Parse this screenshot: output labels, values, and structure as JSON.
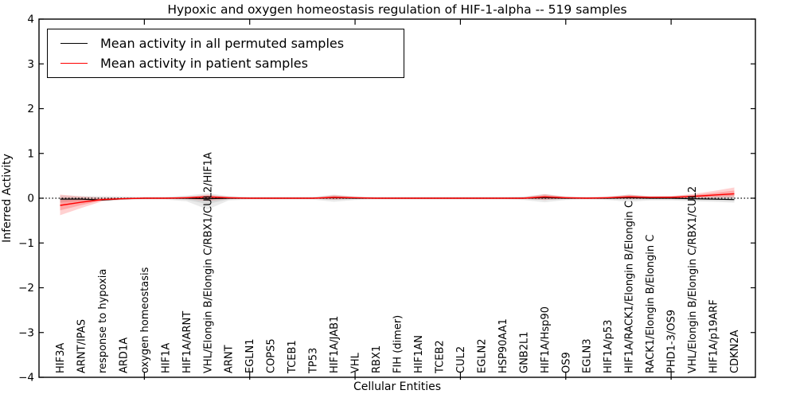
{
  "chart_data": {
    "type": "line",
    "title": "Hypoxic and oxygen homeostasis regulation of HIF-1-alpha -- 519 samples",
    "xlabel": "Cellular Entities",
    "ylabel": "Inferred Activity",
    "ylim": [
      -4,
      4
    ],
    "yticks": [
      4,
      3,
      2,
      1,
      0,
      -1,
      -2,
      -3,
      -4
    ],
    "ytick_labels": [
      "4",
      "3",
      "2",
      "1",
      "0",
      "−1",
      "−2",
      "−3",
      "−4"
    ],
    "xticks_major": [
      5,
      10,
      15,
      20,
      25,
      30
    ],
    "grid": false,
    "legend_position": "upper left",
    "zero_reference_line": 0,
    "categories": [
      "HIF3A",
      "ARNT/IPAS",
      "response to hypoxia",
      "ARD1A",
      "oxygen homeostasis",
      "HIF1A",
      "HIF1A/ARNT",
      "VHL/Elongin B/Elongin C/RBX1/CUL2/HIF1A",
      "ARNT",
      "EGLN1",
      "COPS5",
      "TCEB1",
      "TP53",
      "HIF1A/JAB1",
      "VHL",
      "RBX1",
      "FIH (dimer)",
      "HIF1AN",
      "TCEB2",
      "CUL2",
      "EGLN2",
      "HSP90AA1",
      "GNB2L1",
      "HIF1A/Hsp90",
      "OS9",
      "EGLN3",
      "HIF1A/p53",
      "HIF1A/RACK1/Elongin B/Elongin C",
      "RACK1/Elongin B/Elongin C",
      "PHD1-3/OS9",
      "VHL/Elongin B/Elongin C/RBX1/CUL2",
      "HIF1A/p19ARF",
      "CDKN2A"
    ],
    "series": [
      {
        "name": "Mean activity in all permuted samples",
        "color": "#000000",
        "values": [
          -0.02,
          -0.02,
          -0.04,
          -0.01,
          0,
          0,
          0,
          -0.01,
          0,
          0,
          0,
          0,
          0,
          0.01,
          0,
          0,
          0,
          0,
          0,
          0,
          0,
          0,
          0,
          0.01,
          0,
          0,
          0,
          0.01,
          0,
          0,
          -0.01,
          -0.02,
          -0.03
        ]
      },
      {
        "name": "Mean activity in patient samples",
        "color": "#ff0000",
        "values": [
          -0.16,
          -0.09,
          -0.03,
          -0.01,
          0,
          0,
          0.01,
          0.03,
          0.01,
          0,
          0,
          0,
          0,
          0.02,
          0.01,
          0,
          0,
          0,
          0,
          0,
          0,
          0,
          0,
          0.03,
          0.01,
          0,
          0.01,
          0.03,
          0.02,
          0.02,
          0.04,
          0.07,
          0.1
        ]
      }
    ],
    "bands": [
      {
        "name": "permuted samples range",
        "color": "#8c8c8c",
        "upper": [
          0.06,
          0.05,
          0.05,
          0.04,
          0.03,
          0.03,
          0.06,
          0.11,
          0.05,
          0.03,
          0.03,
          0.03,
          0.03,
          0.08,
          0.04,
          0.03,
          0.03,
          0.03,
          0.03,
          0.03,
          0.03,
          0.03,
          0.04,
          0.09,
          0.04,
          0.03,
          0.04,
          0.08,
          0.05,
          0.05,
          0.07,
          0.08,
          0.09
        ],
        "lower": [
          -0.1,
          -0.07,
          -0.06,
          -0.04,
          -0.03,
          -0.03,
          -0.07,
          -0.25,
          -0.05,
          -0.03,
          -0.03,
          -0.03,
          -0.03,
          -0.08,
          -0.04,
          -0.03,
          -0.03,
          -0.03,
          -0.03,
          -0.03,
          -0.03,
          -0.03,
          -0.04,
          -0.09,
          -0.04,
          -0.03,
          -0.04,
          -0.08,
          -0.05,
          -0.05,
          -0.07,
          -0.08,
          -0.1
        ]
      },
      {
        "name": "patient samples range",
        "color": "#ff0000",
        "upper": [
          0.08,
          0.04,
          0.01,
          0.01,
          0.01,
          0.01,
          0.03,
          0.08,
          0.03,
          0.01,
          0.01,
          0.01,
          0.01,
          0.07,
          0.03,
          0.01,
          0.01,
          0.01,
          0.01,
          0.01,
          0.01,
          0.01,
          0.02,
          0.09,
          0.03,
          0.02,
          0.03,
          0.08,
          0.04,
          0.05,
          0.09,
          0.16,
          0.24
        ],
        "lower": [
          -0.38,
          -0.22,
          -0.07,
          -0.03,
          -0.01,
          -0.01,
          -0.02,
          -0.06,
          -0.02,
          -0.01,
          -0.01,
          -0.01,
          -0.01,
          -0.03,
          -0.01,
          -0.01,
          -0.01,
          -0.01,
          -0.01,
          -0.01,
          -0.01,
          -0.01,
          -0.01,
          -0.04,
          -0.01,
          -0.01,
          -0.01,
          -0.02,
          -0.01,
          0,
          0,
          0.01,
          0.02
        ]
      }
    ]
  }
}
